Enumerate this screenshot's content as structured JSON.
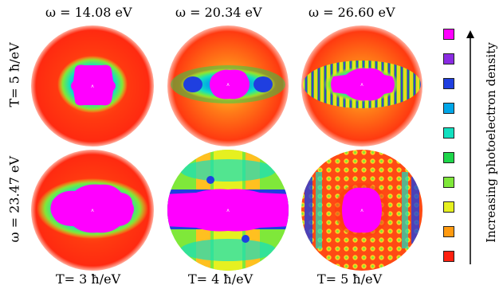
{
  "chart_data": {
    "type": "heatmap",
    "column_labels": [
      "ω = 14.08 eV",
      "ω = 20.34 eV",
      "ω = 26.60 eV"
    ],
    "row_labels_left": [
      "T= 5 ħ/eV",
      "ω = 23.47 eV"
    ],
    "bottom_labels": [
      "T= 3 ħ/eV",
      "T= 4 ħ/eV",
      "T= 5 ħ/eV"
    ],
    "colorbar": {
      "label": "Increasing photoelectron density",
      "colors_high_to_low": [
        "#ff00ff",
        "#8a2be2",
        "#1f3fe0",
        "#00a6e8",
        "#12e0c0",
        "#1ed64a",
        "#7fe83a",
        "#e6f020",
        "#ff9a10",
        "#ff2010"
      ]
    }
  }
}
